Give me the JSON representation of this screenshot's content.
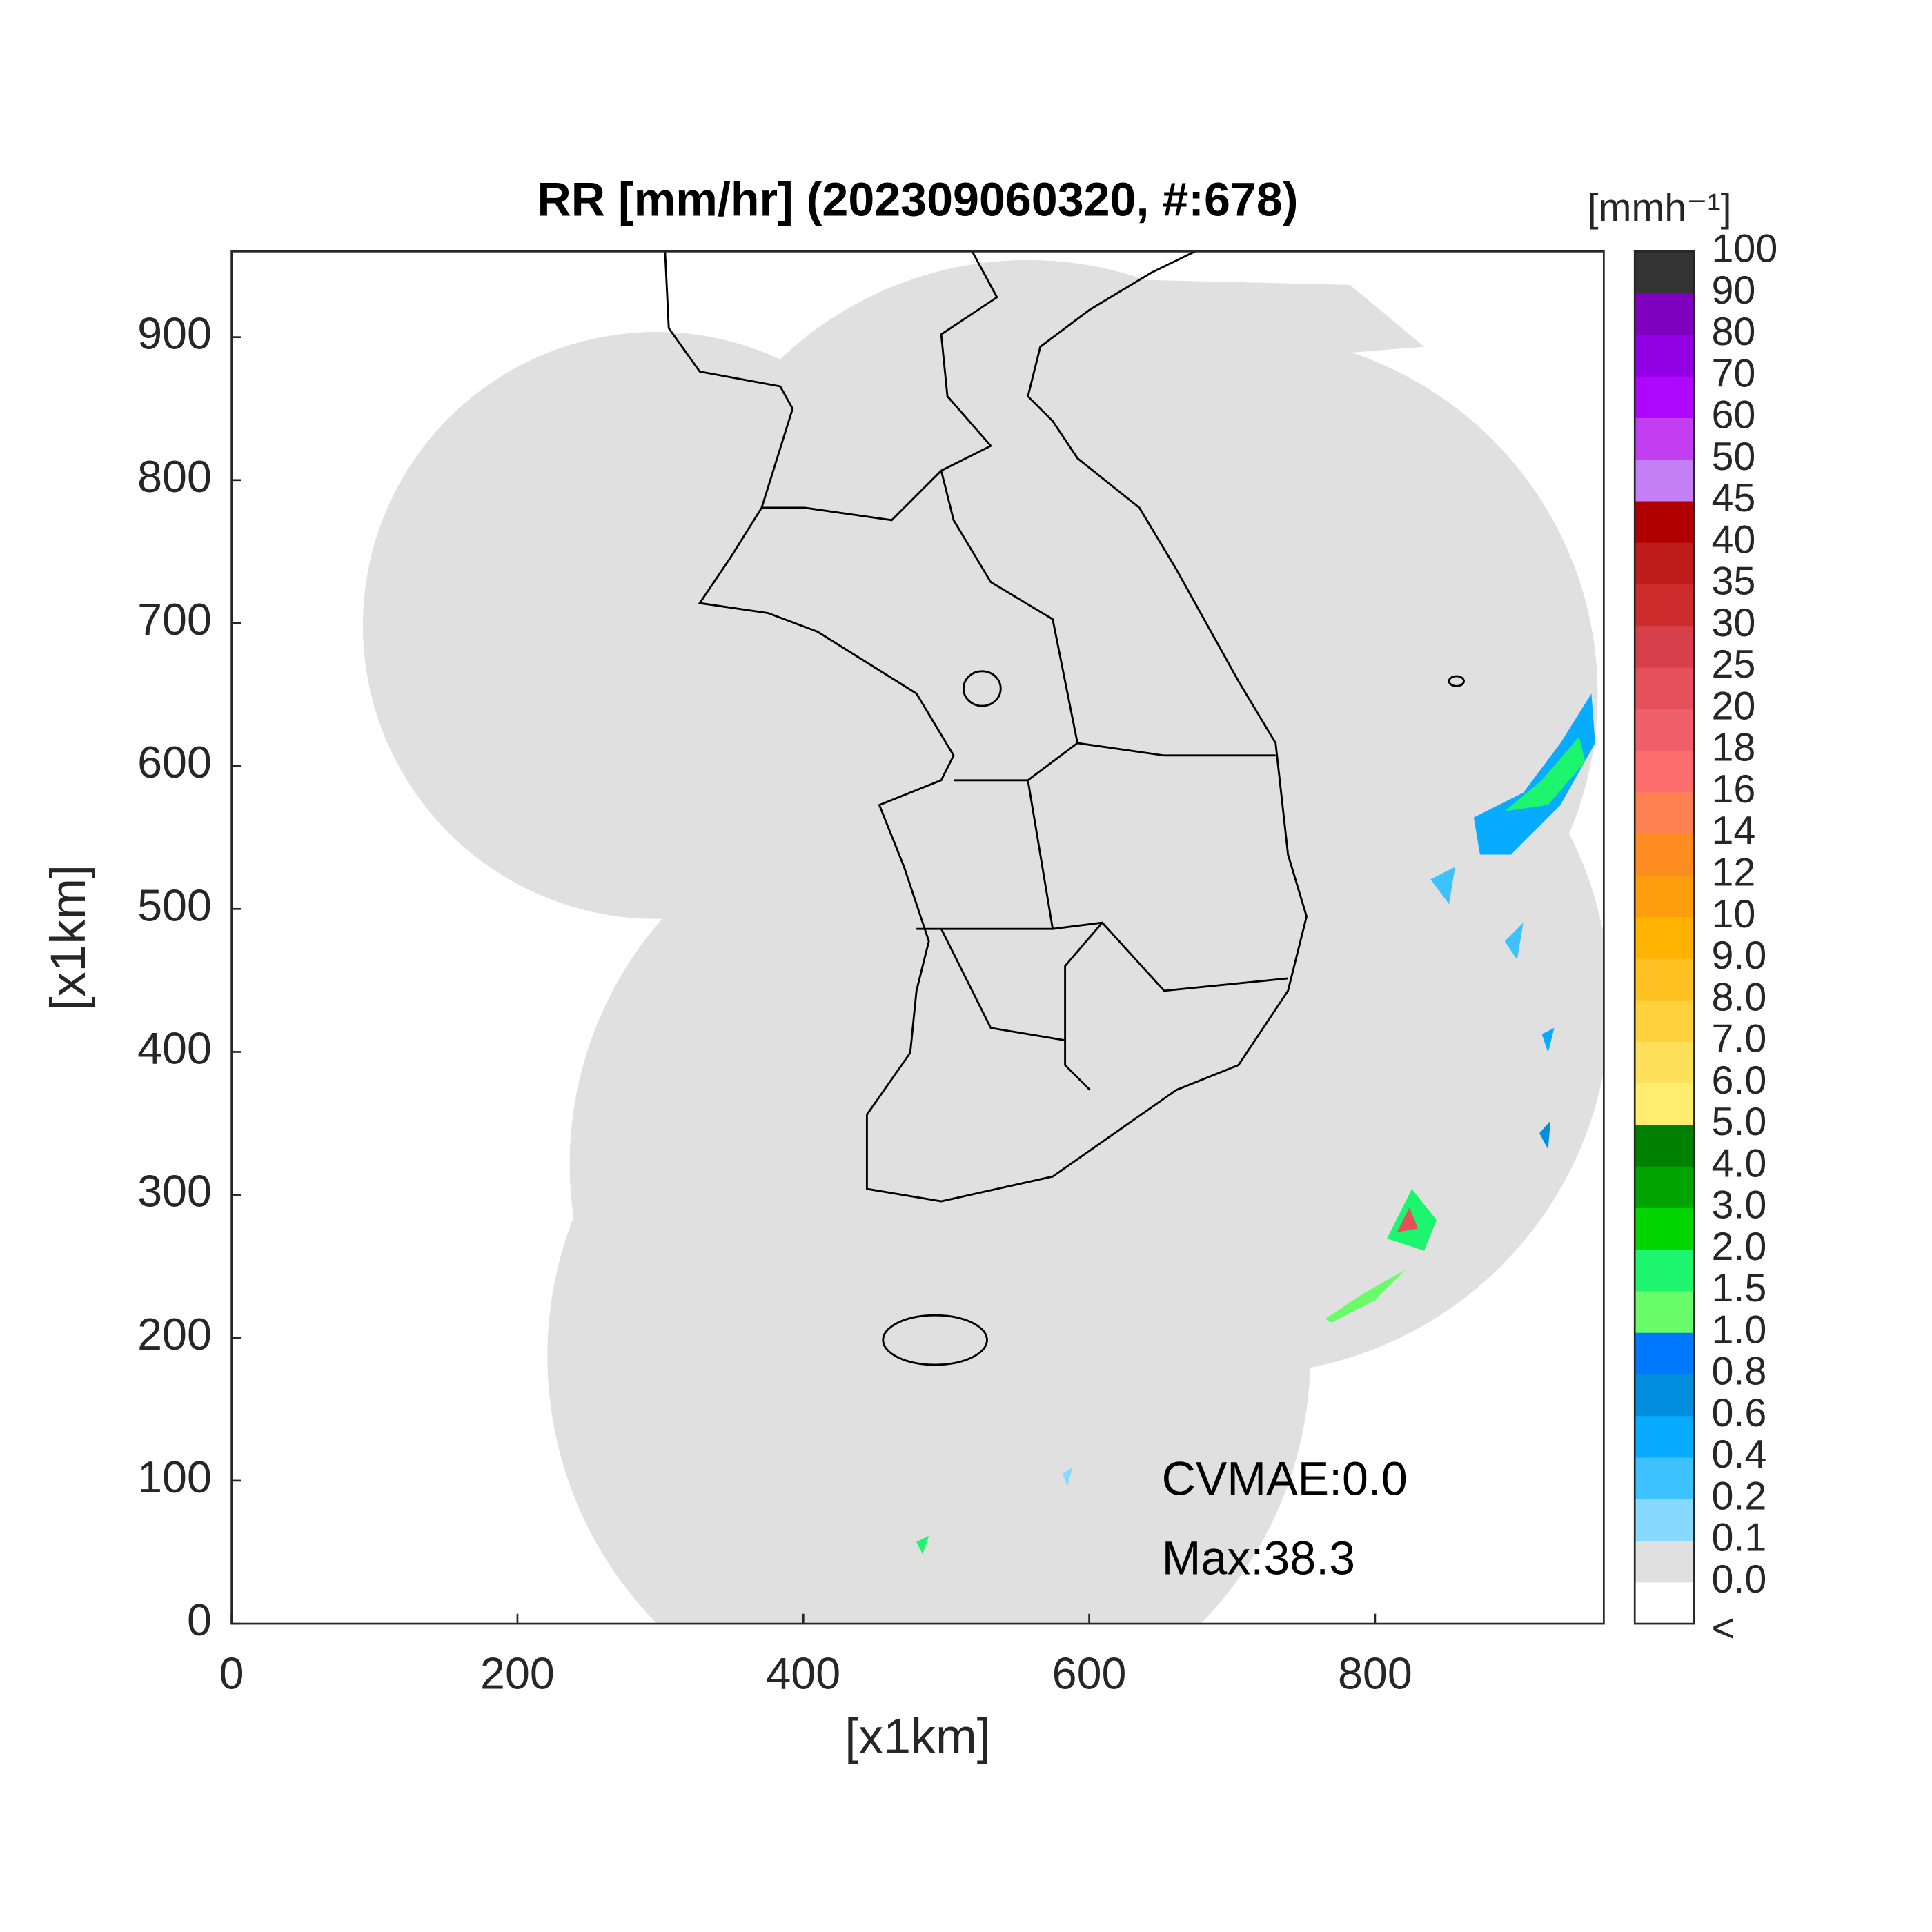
{
  "chart_data": {
    "type": "map",
    "title": "RR [mm/hr] (202309060320, #:678)",
    "x_label": "[x1km]",
    "y_label": "[x1km]",
    "xlim": [
      0,
      960
    ],
    "ylim": [
      0,
      960
    ],
    "xticks": [
      0,
      200,
      400,
      600,
      800
    ],
    "yticks": [
      0,
      100,
      200,
      300,
      400,
      500,
      600,
      700,
      800,
      900
    ],
    "annotations": [
      "CVMAE:0.0",
      "Max:38.3"
    ],
    "colorbar": {
      "label": "[mmh⁻¹]",
      "labels": [
        "<",
        "0.0",
        "0.1",
        "0.2",
        "0.4",
        "0.6",
        "0.8",
        "1.0",
        "1.5",
        "2.0",
        "3.0",
        "4.0",
        "5.0",
        "6.0",
        "7.0",
        "8.0",
        "9.0",
        "10",
        "12",
        "14",
        "16",
        "18",
        "20",
        "25",
        "30",
        "35",
        "40",
        "45",
        "50",
        "60",
        "70",
        "80",
        "90",
        "100"
      ],
      "colors": [
        "#ffffff",
        "#e0e0e0",
        "#87d9ff",
        "#3ec1ff",
        "#07abff",
        "#008dde",
        "#0077ff",
        "#69fc69",
        "#1ef56e",
        "#00d500",
        "#00a400",
        "#008000",
        "#ffee6e",
        "#ffe05a",
        "#ffd13c",
        "#ffc121",
        "#ffb300",
        "#ff9e0c",
        "#ff8c20",
        "#ff8050",
        "#ff6e6e",
        "#f0606b",
        "#e6505a",
        "#d7404a",
        "#cc2c2c",
        "#be1b1b",
        "#b00000",
        "#c47ff7",
        "#c23ef0",
        "#ad07ff",
        "#9200e4",
        "#7f00bf",
        "#333333"
      ]
    }
  }
}
